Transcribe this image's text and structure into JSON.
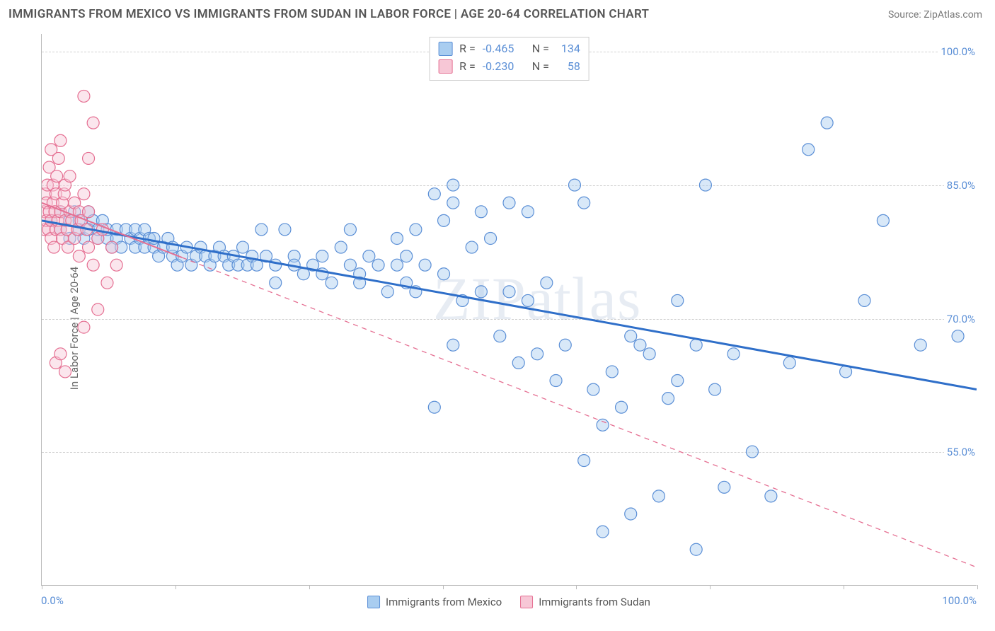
{
  "title": "IMMIGRANTS FROM MEXICO VS IMMIGRANTS FROM SUDAN IN LABOR FORCE | AGE 20-64 CORRELATION CHART",
  "source_prefix": "Source: ",
  "source_name": "ZipAtlas.com",
  "y_axis_label": "In Labor Force | Age 20-64",
  "watermark": "ZIPatlas",
  "chart": {
    "type": "scatter",
    "xlim": [
      0,
      100
    ],
    "ylim": [
      40,
      102
    ],
    "xtick_start": "0.0%",
    "xtick_end": "100.0%",
    "xtick_marks": [
      0,
      14.3,
      28.6,
      42.9,
      57.1,
      71.4,
      85.7,
      100
    ],
    "yticks": [
      {
        "v": 55.0,
        "label": "55.0%"
      },
      {
        "v": 70.0,
        "label": "70.0%"
      },
      {
        "v": 85.0,
        "label": "85.0%"
      },
      {
        "v": 100.0,
        "label": "100.0%"
      }
    ],
    "grid_color": "#d0d0d0",
    "background_color": "#ffffff",
    "marker_radius": 8.5,
    "series": [
      {
        "key": "mexico",
        "label": "Immigrants from Mexico",
        "fill": "#a9cdf0",
        "stroke": "#5b8fd6",
        "R": "-0.465",
        "N": "134",
        "trend": {
          "x1": 0,
          "y1": 81,
          "x2": 100,
          "y2": 62,
          "stroke": "#2f6fc9",
          "width": 3,
          "dash": null,
          "solid_until": 100
        },
        "points": [
          [
            1,
            81
          ],
          [
            2,
            80
          ],
          [
            2,
            82
          ],
          [
            3,
            81
          ],
          [
            3,
            79
          ],
          [
            3.5,
            82
          ],
          [
            4,
            80
          ],
          [
            4,
            81
          ],
          [
            4.5,
            79
          ],
          [
            5,
            82
          ],
          [
            5,
            80
          ],
          [
            5.5,
            81
          ],
          [
            6,
            79
          ],
          [
            6,
            80
          ],
          [
            6.5,
            81
          ],
          [
            7,
            79
          ],
          [
            7,
            80
          ],
          [
            7.5,
            78
          ],
          [
            8,
            80
          ],
          [
            8,
            79
          ],
          [
            8.5,
            78
          ],
          [
            9,
            80
          ],
          [
            9.5,
            79
          ],
          [
            10,
            78
          ],
          [
            10,
            80
          ],
          [
            10.5,
            79
          ],
          [
            11,
            78
          ],
          [
            11,
            80
          ],
          [
            11.5,
            79
          ],
          [
            12,
            78
          ],
          [
            12,
            79
          ],
          [
            12.5,
            77
          ],
          [
            13,
            78
          ],
          [
            13.5,
            79
          ],
          [
            14,
            77
          ],
          [
            14,
            78
          ],
          [
            14.5,
            76
          ],
          [
            15,
            77
          ],
          [
            15.5,
            78
          ],
          [
            16,
            76
          ],
          [
            16.5,
            77
          ],
          [
            17,
            78
          ],
          [
            17.5,
            77
          ],
          [
            18,
            76
          ],
          [
            18.5,
            77
          ],
          [
            19,
            78
          ],
          [
            19.5,
            77
          ],
          [
            20,
            76
          ],
          [
            20.5,
            77
          ],
          [
            21,
            76
          ],
          [
            21.5,
            78
          ],
          [
            22,
            76
          ],
          [
            22.5,
            77
          ],
          [
            23,
            76
          ],
          [
            23.5,
            80
          ],
          [
            24,
            77
          ],
          [
            25,
            76
          ],
          [
            25,
            74
          ],
          [
            26,
            80
          ],
          [
            27,
            77
          ],
          [
            27,
            76
          ],
          [
            28,
            75
          ],
          [
            29,
            76
          ],
          [
            30,
            75
          ],
          [
            30,
            77
          ],
          [
            31,
            74
          ],
          [
            32,
            78
          ],
          [
            33,
            80
          ],
          [
            33,
            76
          ],
          [
            34,
            75
          ],
          [
            34,
            74
          ],
          [
            35,
            77
          ],
          [
            36,
            76
          ],
          [
            37,
            73
          ],
          [
            38,
            79
          ],
          [
            38,
            76
          ],
          [
            39,
            77
          ],
          [
            39,
            74
          ],
          [
            40,
            73
          ],
          [
            40,
            80
          ],
          [
            41,
            76
          ],
          [
            42,
            60
          ],
          [
            42,
            84
          ],
          [
            43,
            75
          ],
          [
            43,
            81
          ],
          [
            44,
            67
          ],
          [
            44,
            83
          ],
          [
            44,
            85
          ],
          [
            45,
            72
          ],
          [
            46,
            78
          ],
          [
            47,
            82
          ],
          [
            47,
            73
          ],
          [
            48,
            79
          ],
          [
            49,
            68
          ],
          [
            50,
            73
          ],
          [
            50,
            83
          ],
          [
            51,
            65
          ],
          [
            52,
            72
          ],
          [
            52,
            82
          ],
          [
            53,
            66
          ],
          [
            54,
            74
          ],
          [
            55,
            63
          ],
          [
            56,
            67
          ],
          [
            57,
            85
          ],
          [
            58,
            54
          ],
          [
            58,
            83
          ],
          [
            59,
            62
          ],
          [
            60,
            58
          ],
          [
            60,
            46
          ],
          [
            61,
            64
          ],
          [
            62,
            60
          ],
          [
            63,
            68
          ],
          [
            63,
            48
          ],
          [
            64,
            67
          ],
          [
            65,
            66
          ],
          [
            66,
            50
          ],
          [
            67,
            61
          ],
          [
            68,
            63
          ],
          [
            68,
            72
          ],
          [
            70,
            67
          ],
          [
            70,
            44
          ],
          [
            71,
            85
          ],
          [
            72,
            62
          ],
          [
            73,
            51
          ],
          [
            74,
            66
          ],
          [
            76,
            55
          ],
          [
            78,
            50
          ],
          [
            80,
            65
          ],
          [
            82,
            89
          ],
          [
            84,
            92
          ],
          [
            86,
            64
          ],
          [
            88,
            72
          ],
          [
            90,
            81
          ],
          [
            94,
            67
          ],
          [
            98,
            68
          ]
        ]
      },
      {
        "key": "sudan",
        "label": "Immigrants from Sudan",
        "fill": "#f7c7d6",
        "stroke": "#e56f92",
        "R": "-0.230",
        "N": "58",
        "trend": {
          "x1": 0,
          "y1": 83,
          "x2": 100,
          "y2": 42,
          "stroke": "#e56f92",
          "width": 2,
          "dash": "7,6",
          "solid_until": 15
        },
        "points": [
          [
            0.2,
            82
          ],
          [
            0.3,
            80
          ],
          [
            0.4,
            84
          ],
          [
            0.5,
            81
          ],
          [
            0.5,
            83
          ],
          [
            0.6,
            85
          ],
          [
            0.7,
            80
          ],
          [
            0.8,
            82
          ],
          [
            0.8,
            87
          ],
          [
            1,
            81
          ],
          [
            1,
            89
          ],
          [
            1,
            79
          ],
          [
            1.2,
            83
          ],
          [
            1.2,
            85
          ],
          [
            1.3,
            78
          ],
          [
            1.4,
            82
          ],
          [
            1.5,
            84
          ],
          [
            1.5,
            80
          ],
          [
            1.6,
            86
          ],
          [
            1.7,
            81
          ],
          [
            1.8,
            88
          ],
          [
            2,
            82
          ],
          [
            2,
            80
          ],
          [
            2,
            90
          ],
          [
            2.2,
            83
          ],
          [
            2.2,
            79
          ],
          [
            2.4,
            84
          ],
          [
            2.5,
            81
          ],
          [
            2.5,
            85
          ],
          [
            2.7,
            80
          ],
          [
            2.8,
            78
          ],
          [
            3,
            82
          ],
          [
            3,
            86
          ],
          [
            3.2,
            81
          ],
          [
            3.5,
            83
          ],
          [
            3.5,
            79
          ],
          [
            3.8,
            80
          ],
          [
            4,
            82
          ],
          [
            4,
            77
          ],
          [
            4.2,
            81
          ],
          [
            4.5,
            84
          ],
          [
            4.5,
            95
          ],
          [
            4.8,
            80
          ],
          [
            5,
            78
          ],
          [
            5,
            82
          ],
          [
            5.5,
            76
          ],
          [
            5.5,
            92
          ],
          [
            6,
            79
          ],
          [
            6,
            71
          ],
          [
            6.5,
            80
          ],
          [
            7,
            74
          ],
          [
            7.5,
            78
          ],
          [
            1.5,
            65
          ],
          [
            2,
            66
          ],
          [
            2.5,
            64
          ],
          [
            4.5,
            69
          ],
          [
            8,
            76
          ],
          [
            5,
            88
          ]
        ]
      }
    ]
  },
  "legend": {
    "items": [
      {
        "key": "mexico",
        "label": "Immigrants from Mexico",
        "fill": "#a9cdf0",
        "stroke": "#5b8fd6"
      },
      {
        "key": "sudan",
        "label": "Immigrants from Sudan",
        "fill": "#f7c7d6",
        "stroke": "#e56f92"
      }
    ]
  }
}
